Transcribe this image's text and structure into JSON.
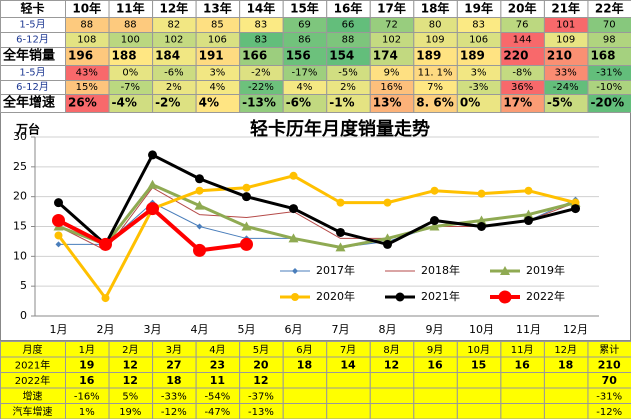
{
  "top_table": {
    "header": [
      "轻卡",
      "10年",
      "11年",
      "12年",
      "13年",
      "14年",
      "15年",
      "16年",
      "17年",
      "18年",
      "19年",
      "20年",
      "21年",
      "22年"
    ],
    "rows": [
      {
        "label": "1-5月",
        "cells": [
          88,
          88,
          82,
          85,
          83,
          69,
          66,
          72,
          80,
          83,
          76,
          101,
          70
        ]
      },
      {
        "label": "6-12月",
        "cells": [
          108,
          100,
          102,
          106,
          83,
          86,
          88,
          102,
          109,
          106,
          144,
          109,
          98
        ]
      },
      {
        "label": "全年销量",
        "cells": [
          196,
          188,
          184,
          191,
          166,
          156,
          154,
          174,
          189,
          189,
          220,
          210,
          168
        ]
      },
      {
        "label": "1-5月",
        "cells": [
          "43%",
          "0%",
          "-6%",
          "3%",
          "-2%",
          "-17%",
          "-5%",
          "9%",
          "11. 1%",
          "3%",
          "-8%",
          "33%",
          "-31%"
        ]
      },
      {
        "label": "6-12月",
        "cells": [
          "15%",
          "-7%",
          "2%",
          "4%",
          "-22%",
          "4%",
          "2%",
          "16%",
          "7%",
          "-3%",
          "36%",
          "-24%",
          "-10%"
        ]
      },
      {
        "label": "全年增速",
        "cells": [
          "26%",
          "-4%",
          "-2%",
          "4%",
          "-13%",
          "-6%",
          "-1%",
          "13%",
          "8. 6%",
          "0%",
          "17%",
          "-5%",
          "-20%"
        ]
      }
    ]
  },
  "chart_data": {
    "type": "line",
    "title": "轻卡历年月度销量走势",
    "y_label": "万台",
    "categories": [
      "1月",
      "2月",
      "3月",
      "4月",
      "5月",
      "6月",
      "7月",
      "8月",
      "9月",
      "10月",
      "11月",
      "12月"
    ],
    "ylim": [
      0,
      30
    ],
    "yticks": [
      0,
      5,
      10,
      15,
      20,
      25,
      30
    ],
    "grid": true,
    "legend": "bottom-right",
    "series": [
      {
        "name": "2017年",
        "color": "#4a7ebb",
        "values": [
          12,
          12,
          19,
          15,
          13,
          13,
          11.5,
          12.5,
          15,
          15,
          16,
          19.5
        ]
      },
      {
        "name": "2018年",
        "color": "#b54a48",
        "values": [
          15,
          11,
          21.5,
          17,
          16.5,
          17.5,
          13,
          13,
          15,
          15,
          16,
          19
        ]
      },
      {
        "name": "2019年",
        "color": "#8faa52",
        "values": [
          15,
          12,
          22,
          18.5,
          15,
          13,
          11.5,
          13,
          15,
          16,
          17,
          19
        ]
      },
      {
        "name": "2020年",
        "color": "#ffc000",
        "values": [
          13.5,
          3,
          18,
          21,
          21.5,
          23.5,
          19,
          19,
          21,
          20.5,
          21,
          19
        ]
      },
      {
        "name": "2021年",
        "color": "#000000",
        "values": [
          19,
          12,
          27,
          23,
          20,
          18,
          14,
          12,
          16,
          15,
          16,
          18
        ]
      },
      {
        "name": "2022年",
        "color": "#ff0000",
        "values": [
          16,
          12,
          18,
          11,
          12,
          null,
          null,
          null,
          null,
          null,
          null,
          null
        ]
      }
    ]
  },
  "bottom_table": {
    "header": [
      "月度",
      "1月",
      "2月",
      "3月",
      "4月",
      "5月",
      "6月",
      "7月",
      "8月",
      "9月",
      "10月",
      "11月",
      "12月",
      "累计"
    ],
    "rows": [
      {
        "label": "2021年",
        "cells": [
          19,
          12,
          27,
          23,
          20,
          18,
          14,
          12,
          16,
          15,
          16,
          18,
          210
        ]
      },
      {
        "label": "2022年",
        "cells": [
          16,
          12,
          18,
          11,
          12,
          null,
          null,
          null,
          null,
          null,
          null,
          null,
          70
        ]
      },
      {
        "label": "增速",
        "cells": [
          "-16%",
          "5%",
          "-33%",
          "-54%",
          "-37%",
          null,
          null,
          null,
          null,
          null,
          null,
          null,
          "-31%"
        ]
      },
      {
        "label": "汽车增速",
        "cells": [
          "1%",
          "19%",
          "-12%",
          "-47%",
          "-13%",
          null,
          null,
          null,
          null,
          null,
          null,
          null,
          "-12%"
        ]
      }
    ]
  }
}
